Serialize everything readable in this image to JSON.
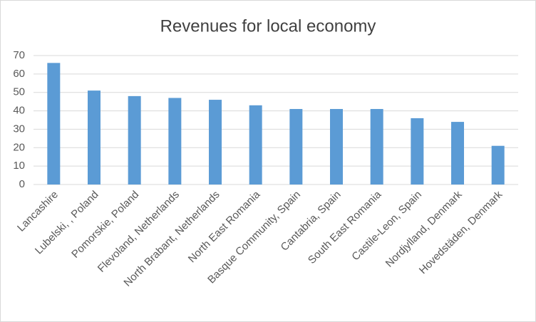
{
  "chart_data": {
    "type": "bar",
    "title": "Revenues for local economy",
    "categories": [
      "Lancashire",
      "Lubelski, , Poland",
      "Pomorskie, Poland",
      "Flevoland, Netherlands",
      "North Brabant, Netherlands",
      "North East Romania",
      "Basque Community, Spain",
      "Cantabria, Spain",
      "South East Romania",
      "Castile-Leon, Spain",
      "Nordjylland, Denmark",
      "Hovedstäden, Denmark"
    ],
    "values": [
      66,
      51,
      48,
      47,
      46,
      43,
      41,
      41,
      41,
      36,
      34,
      21
    ],
    "color": "#5b9bd5",
    "ylim": [
      0,
      70
    ],
    "yticks": [
      0,
      10,
      20,
      30,
      40,
      50,
      60,
      70
    ],
    "grid": true
  }
}
